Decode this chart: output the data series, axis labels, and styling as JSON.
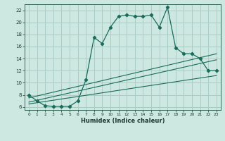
{
  "xlabel": "Humidex (Indice chaleur)",
  "background_color": "#cce8e0",
  "grid_color": "#aaccc4",
  "line_color": "#1a6b5a",
  "xlim": [
    -0.5,
    23.5
  ],
  "ylim": [
    5.5,
    23.0
  ],
  "xticks": [
    0,
    1,
    2,
    3,
    4,
    5,
    6,
    7,
    8,
    9,
    10,
    11,
    12,
    13,
    14,
    15,
    16,
    17,
    18,
    19,
    20,
    21,
    22,
    23
  ],
  "yticks": [
    6,
    8,
    10,
    12,
    14,
    16,
    18,
    20,
    22
  ],
  "main_x": [
    0,
    1,
    2,
    3,
    4,
    5,
    6,
    7,
    8,
    9,
    10,
    11,
    12,
    13,
    14,
    15,
    16,
    17,
    18,
    19,
    20,
    21,
    22,
    23
  ],
  "main_y": [
    8.0,
    7.0,
    6.2,
    6.1,
    6.1,
    6.1,
    7.0,
    10.5,
    17.5,
    16.5,
    19.2,
    21.0,
    21.2,
    21.0,
    21.0,
    21.2,
    19.2,
    22.5,
    15.8,
    14.8,
    14.8,
    14.0,
    12.0,
    12.0
  ],
  "line1_x": [
    0,
    23
  ],
  "line1_y": [
    6.5,
    11.2
  ],
  "line2_x": [
    0,
    23
  ],
  "line2_y": [
    6.8,
    13.8
  ],
  "line3_x": [
    0,
    23
  ],
  "line3_y": [
    7.5,
    14.8
  ]
}
